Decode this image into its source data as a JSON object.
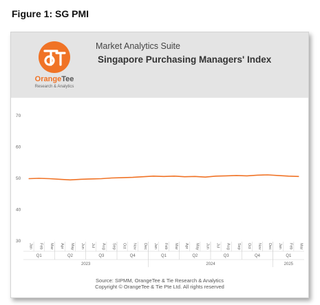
{
  "figure_title": "Figure 1: SG PMI",
  "header": {
    "suite": "Market Analytics Suite",
    "title": "Singapore Purchasing Managers' Index",
    "logo_name_a": "Orange",
    "logo_name_b": "Tee",
    "logo_sub": "Research & Analytics",
    "logo_icon": "orangetee-logo-icon",
    "brand_color": "#f07326"
  },
  "footer": {
    "source": "Source: SIPMM, OrangeTee & Tie Research & Analytics",
    "copyright": "Copyright © OrangeTee & Tie Pte Ltd. All rights reserved"
  },
  "chart_data": {
    "type": "line",
    "title": "",
    "ylim": [
      30,
      70
    ],
    "yticks": [
      30,
      40,
      50,
      60,
      70
    ],
    "grid": false,
    "line_color": "#f07326",
    "x": [
      "Jan",
      "Feb",
      "Mar",
      "Apr",
      "May",
      "Jun",
      "Jul",
      "Aug",
      "Sep",
      "Oct",
      "Nov",
      "Dec",
      "Jan",
      "Feb",
      "Mar",
      "Apr",
      "May",
      "Jun",
      "Jul",
      "Aug",
      "Sep",
      "Oct",
      "Nov",
      "Dec",
      "Jan",
      "Feb",
      "Mar"
    ],
    "quarters": [
      "Q1",
      "Q2",
      "Q3",
      "Q4",
      "Q1",
      "Q2",
      "Q3",
      "Q4",
      "Q1"
    ],
    "years": [
      "2023",
      "2024",
      "2025"
    ],
    "series": [
      {
        "values": [
          49.9,
          50.0,
          49.9,
          49.7,
          49.5,
          49.7,
          49.8,
          49.9,
          50.1,
          50.2,
          50.3,
          50.5,
          50.7,
          50.6,
          50.7,
          50.5,
          50.6,
          50.4,
          50.7,
          50.8,
          50.9,
          50.8,
          51.0,
          51.1,
          50.9,
          50.7,
          50.6
        ]
      }
    ]
  }
}
